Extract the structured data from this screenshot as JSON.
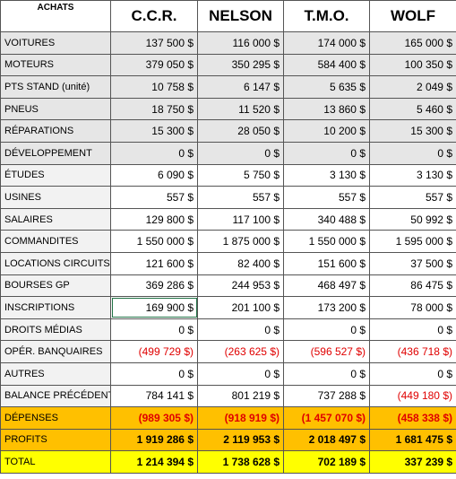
{
  "table": {
    "corner": "ACHATS",
    "columns": [
      "C.C.R.",
      "NELSON",
      "T.M.O.",
      "WOLF"
    ],
    "rows": [
      {
        "label": "VOITURES",
        "values": [
          "137 500 $",
          "116 000 $",
          "174 000 $",
          "165 000 $"
        ]
      },
      {
        "label": "MOTEURS",
        "values": [
          "379 050 $",
          "350 295 $",
          "584 400 $",
          "100 350 $"
        ]
      },
      {
        "label": "PTS STAND (unité)",
        "values": [
          "10 758 $",
          "6 147 $",
          "5 635 $",
          "2 049 $"
        ]
      },
      {
        "label": "PNEUS",
        "values": [
          "18 750 $",
          "11 520 $",
          "13 860 $",
          "5 460 $"
        ]
      },
      {
        "label": "RÉPARATIONS",
        "values": [
          "15 300 $",
          "28 050 $",
          "10 200 $",
          "15 300 $"
        ]
      },
      {
        "label": "DÉVELOPPEMENT",
        "values": [
          "0 $",
          "0 $",
          "0 $",
          "0 $"
        ]
      },
      {
        "label": "ÉTUDES",
        "values": [
          "6 090 $",
          "5 750 $",
          "3 130 $",
          "3 130 $"
        ]
      },
      {
        "label": "USINES",
        "values": [
          "557 $",
          "557 $",
          "557 $",
          "557 $"
        ]
      },
      {
        "label": "SALAIRES",
        "values": [
          "129 800 $",
          "117 100 $",
          "340 488 $",
          "50 992 $"
        ]
      },
      {
        "label": "COMMANDITES",
        "values": [
          "1 550 000 $",
          "1 875 000 $",
          "1 550 000 $",
          "1 595 000 $"
        ]
      },
      {
        "label": "LOCATIONS CIRCUITS",
        "values": [
          "121 600 $",
          "82 400 $",
          "151 600 $",
          "37 500 $"
        ]
      },
      {
        "label": "BOURSES GP",
        "values": [
          "369 286 $",
          "244 953 $",
          "468 497 $",
          "86 475 $"
        ]
      },
      {
        "label": "INSCRIPTIONS",
        "values": [
          "169 900 $",
          "201 100 $",
          "173 200 $",
          "78 000 $"
        ]
      },
      {
        "label": "DROITS MÉDIAS",
        "values": [
          "0 $",
          "0 $",
          "0 $",
          "0 $"
        ]
      },
      {
        "label": "OPÉR. BANQUAIRES",
        "values": [
          "(499 729 $)",
          "(263 625 $)",
          "(596 527 $)",
          "(436 718 $)"
        ]
      },
      {
        "label": "AUTRES",
        "values": [
          "0 $",
          "0 $",
          "0 $",
          "0 $"
        ]
      },
      {
        "label": "BALANCE PRÉCÉDENT",
        "values": [
          "784 141 $",
          "801 219 $",
          "737 288 $",
          "(449 180 $)"
        ]
      },
      {
        "label": "DÉPENSES",
        "values": [
          "(989 305 $)",
          "(918 919 $)",
          "(1 457 070 $)",
          "(458 338 $)"
        ]
      },
      {
        "label": "PROFITS",
        "values": [
          "1 919 286 $",
          "2 119 953 $",
          "2 018 497 $",
          "1 681 475 $"
        ]
      },
      {
        "label": "TOTAL",
        "values": [
          "1 214 394 $",
          "1 738 628 $",
          "702 189 $",
          "337 239 $"
        ]
      }
    ]
  }
}
